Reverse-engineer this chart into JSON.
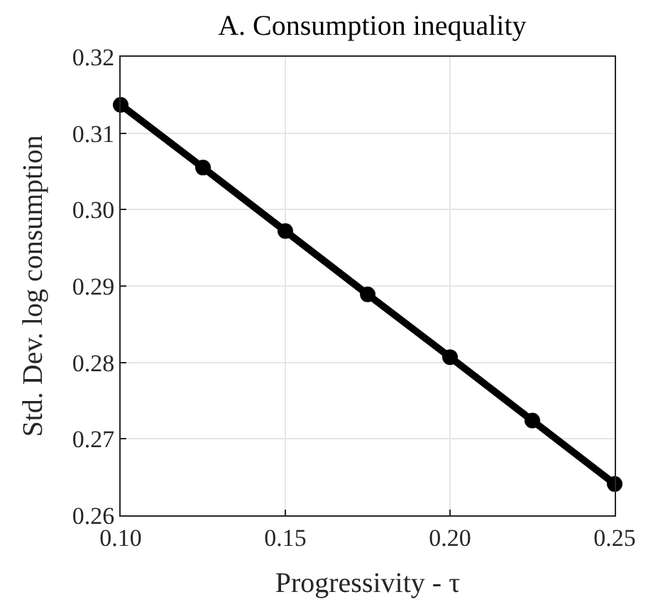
{
  "chart_data": {
    "type": "line",
    "title": "A. Consumption inequality",
    "xlabel": "Progressivity - τ",
    "ylabel": "Std. Dev. log consumption",
    "x": [
      0.1,
      0.125,
      0.15,
      0.175,
      0.2,
      0.225,
      0.25
    ],
    "series": [
      {
        "color": "#000000",
        "values": [
          0.3137,
          0.3055,
          0.2972,
          0.2889,
          0.2807,
          0.2724,
          0.2641
        ]
      }
    ],
    "xlim": [
      0.1,
      0.25
    ],
    "xticks": [
      {
        "value": 0.1,
        "label": "0.10"
      },
      0.15,
      {
        "value": 0.2,
        "label": "0.20"
      },
      0.25
    ],
    "ylim": [
      0.26,
      0.32
    ],
    "yticks": [
      0.26,
      0.27,
      0.28,
      0.29,
      {
        "value": 0.3,
        "label": "0.30"
      },
      0.31,
      0.32
    ],
    "grid": true,
    "marker": "circle",
    "line_style": "solid",
    "legend": false
  }
}
